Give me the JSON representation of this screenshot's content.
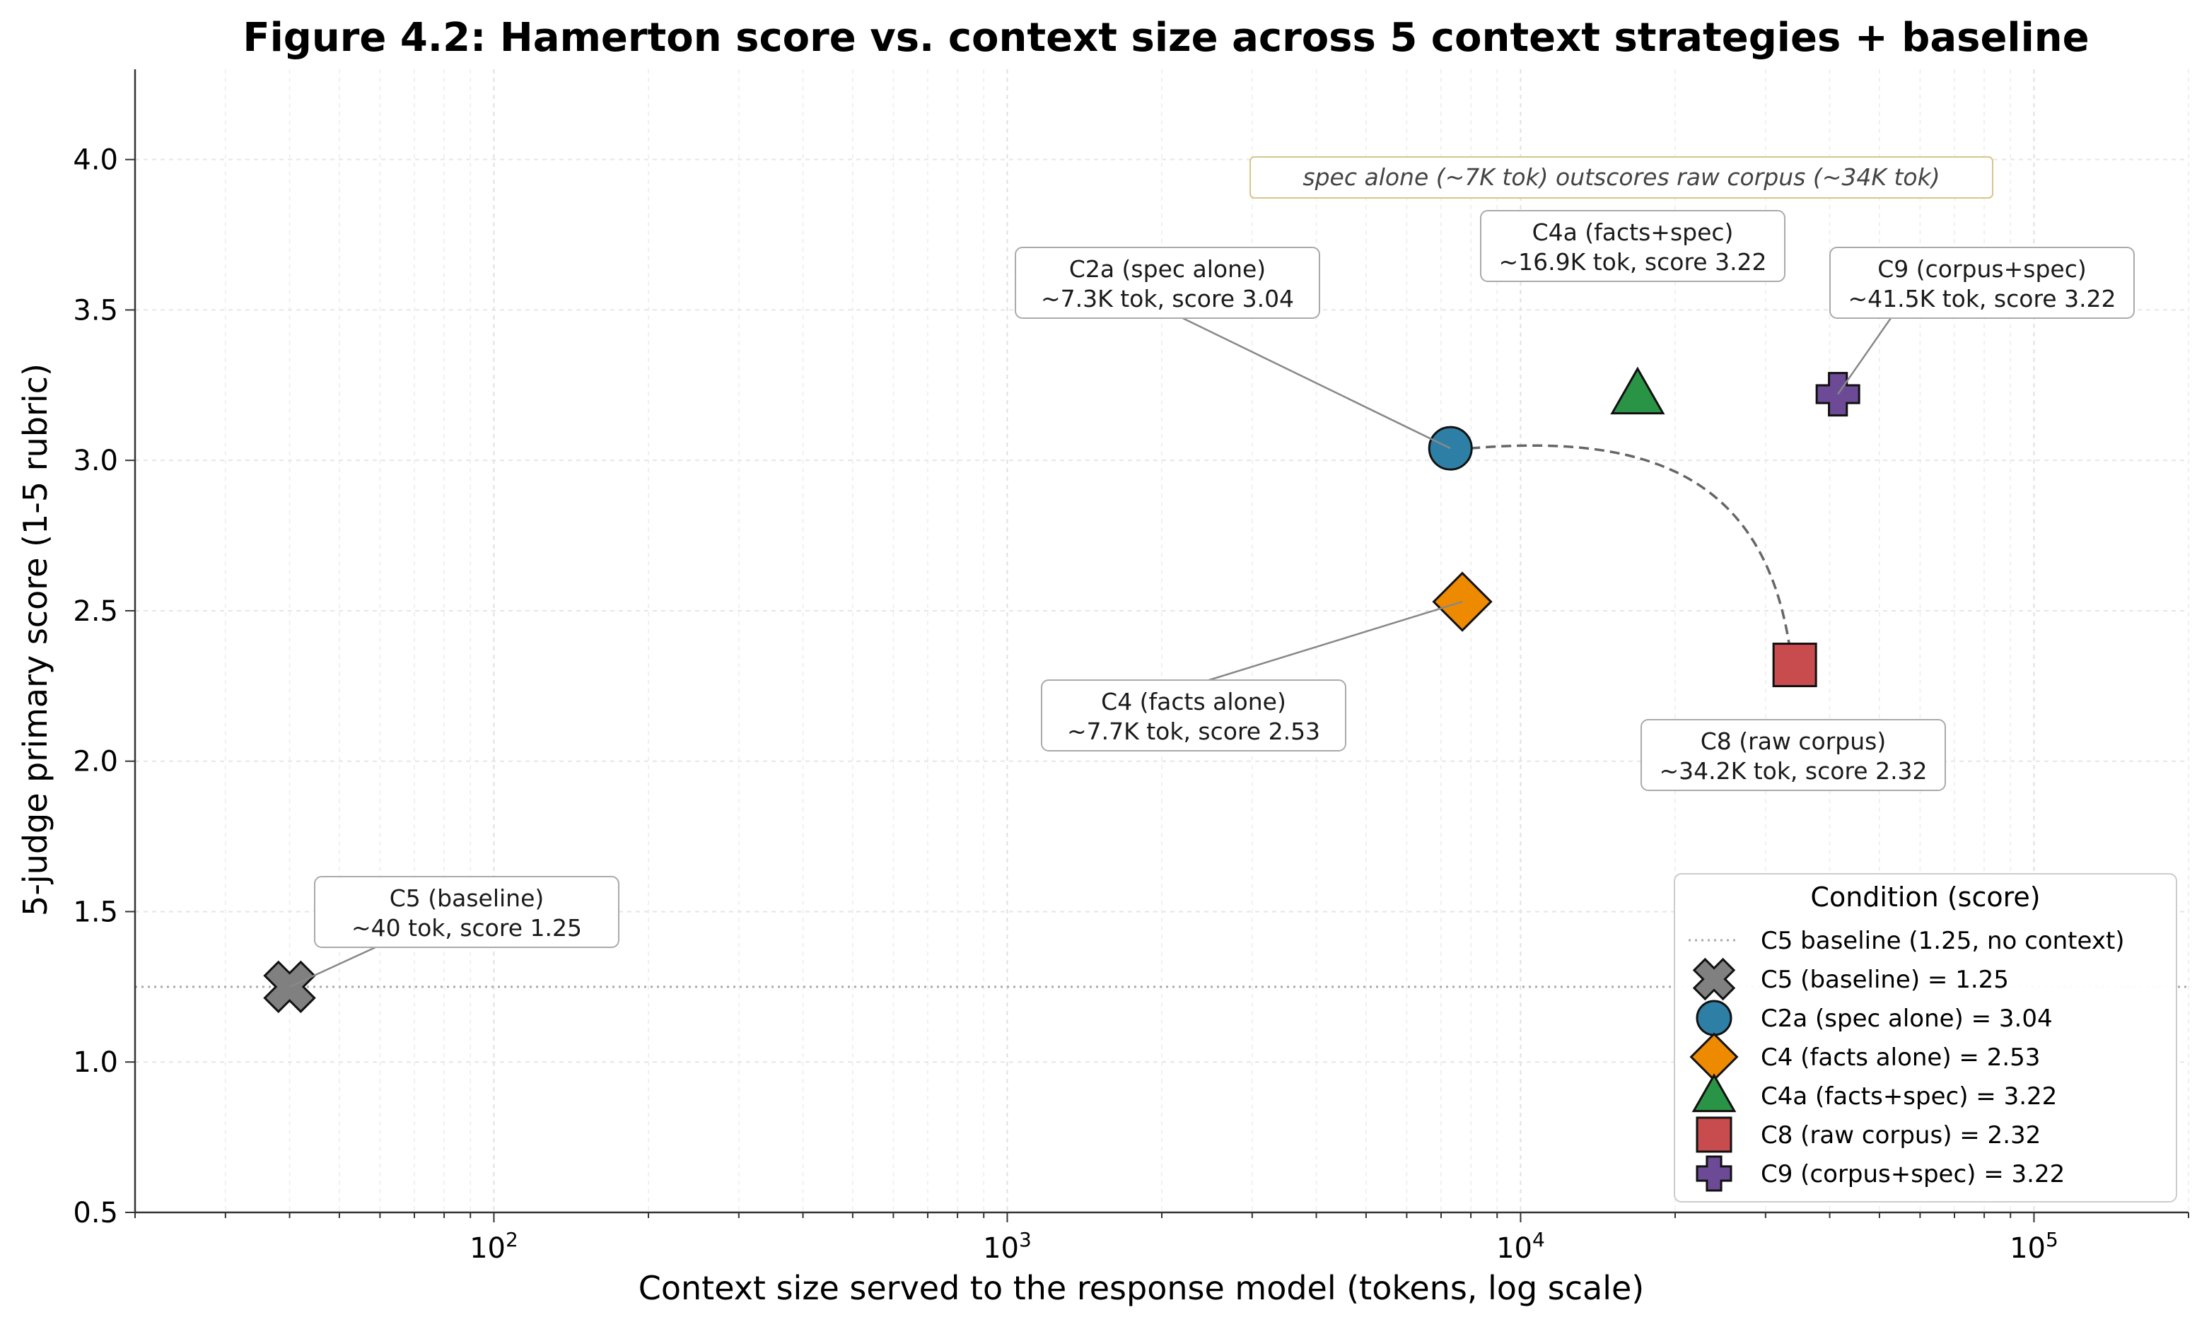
{
  "chart_data": {
    "type": "scatter",
    "title": "Figure 4.2: Hamerton score vs. context size across 5 context strategies + baseline",
    "xlabel": "Context size served to the response model (tokens, log scale)",
    "ylabel": "5-judge primary score (1-5 rubric)",
    "xscale": "log",
    "xlim": [
      20,
      200000
    ],
    "ylim": [
      0.5,
      4.3
    ],
    "x_ticks": [
      {
        "value": 100,
        "base": "10",
        "exp": "2"
      },
      {
        "value": 1000,
        "base": "10",
        "exp": "3"
      },
      {
        "value": 10000,
        "base": "10",
        "exp": "4"
      },
      {
        "value": 100000,
        "base": "10",
        "exp": "5"
      }
    ],
    "y_ticks": [
      0.5,
      1.0,
      1.5,
      2.0,
      2.5,
      3.0,
      3.5,
      4.0
    ],
    "y_tick_labels": [
      "0.5",
      "1.0",
      "1.5",
      "2.0",
      "2.5",
      "3.0",
      "3.5",
      "4.0"
    ],
    "grid": true,
    "baseline": {
      "y": 1.25,
      "label": "C5 baseline (1.25, no context)",
      "color": "#aaaaaa"
    },
    "series": [
      {
        "name": "C5 (baseline) = 1.25",
        "x": 40,
        "y": 1.25,
        "marker": "x",
        "color": "#808080",
        "annotation": [
          "C5 (baseline)",
          "~40 tok, score 1.25"
        ]
      },
      {
        "name": "C2a (spec alone) = 3.04",
        "x": 7300,
        "y": 3.04,
        "marker": "circle",
        "color": "#2e7fa6",
        "annotation": [
          "C2a (spec alone)",
          "~7.3K tok, score 3.04"
        ]
      },
      {
        "name": "C4 (facts alone) = 2.53",
        "x": 7700,
        "y": 2.53,
        "marker": "diamond",
        "color": "#ee8a00",
        "annotation": [
          "C4 (facts alone)",
          "~7.7K tok, score 2.53"
        ]
      },
      {
        "name": "C4a (facts+spec) = 3.22",
        "x": 16900,
        "y": 3.22,
        "marker": "triangle",
        "color": "#2a9446",
        "annotation": [
          "C4a (facts+spec)",
          "~16.9K tok, score 3.22"
        ]
      },
      {
        "name": "C8 (raw corpus) = 2.32",
        "x": 34200,
        "y": 2.32,
        "marker": "square",
        "color": "#c84b4e",
        "annotation": [
          "C8 (raw corpus)",
          "~34.2K tok, score 2.32"
        ]
      },
      {
        "name": "C9 (corpus+spec) = 3.22",
        "x": 41500,
        "y": 3.22,
        "marker": "plus",
        "color": "#6c4a96",
        "annotation": [
          "C9 (corpus+spec)",
          "~41.5K tok, score 3.22"
        ]
      }
    ],
    "note": "spec alone (~7K tok) outscores raw corpus (~34K tok)",
    "legend": {
      "title": "Condition (score)",
      "position": "lower right"
    }
  }
}
